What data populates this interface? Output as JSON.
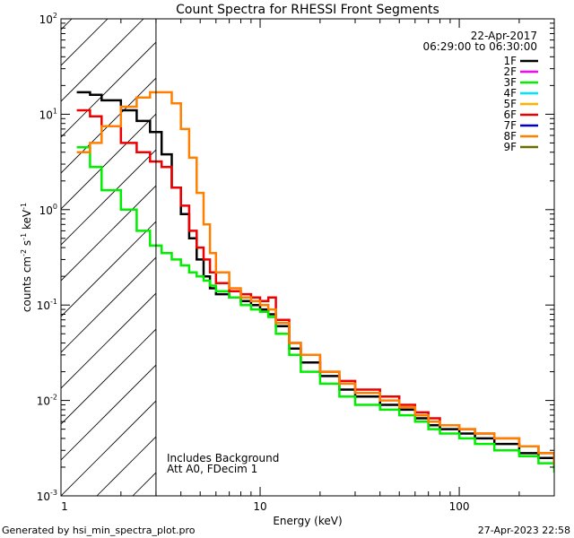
{
  "chart_data": {
    "type": "line",
    "title": "Count Spectra for RHESSI Front Segments",
    "xlabel": "Energy (keV)",
    "ylabel_parts": [
      "counts cm",
      "-2",
      " s",
      "-1",
      " keV",
      "-1"
    ],
    "x_scale": "log",
    "y_scale": "log",
    "xlim": [
      1,
      300
    ],
    "ylim": [
      0.001,
      100
    ],
    "x_ticks": [
      {
        "value": 10,
        "label": "10"
      },
      {
        "value": 100,
        "label": "100"
      }
    ],
    "y_ticks": [
      {
        "value": 0.001,
        "base": "10",
        "exp": "-3"
      },
      {
        "value": 0.01,
        "base": "10",
        "exp": "-2"
      },
      {
        "value": 0.1,
        "base": "10",
        "exp": "-1"
      },
      {
        "value": 1,
        "base": "10",
        "exp": "0"
      },
      {
        "value": 10,
        "base": "10",
        "exp": "1"
      },
      {
        "value": 100,
        "base": "10",
        "exp": "2"
      }
    ],
    "hatched_region_xmax": 3,
    "date": "22-Apr-2017",
    "time_range": "06:29:00 to 06:30:00",
    "annotations": [
      "Includes Background",
      "Att A0, FDecim 1"
    ],
    "footer_left": "Generated by hsi_min_spectra_plot.pro",
    "footer_right": "27-Apr-2023 22:58",
    "legend": [
      {
        "label": "1F",
        "color": "#000000"
      },
      {
        "label": "2F",
        "color": "#ff00ff"
      },
      {
        "label": "3F",
        "color": "#00ee00"
      },
      {
        "label": "4F",
        "color": "#00e5ff"
      },
      {
        "label": "5F",
        "color": "#ffb000"
      },
      {
        "label": "6F",
        "color": "#ee0000"
      },
      {
        "label": "7F",
        "color": "#0000cc"
      },
      {
        "label": "8F",
        "color": "#ff7f00"
      },
      {
        "label": "9F",
        "color": "#6b6b00"
      }
    ],
    "series": [
      {
        "name": "1F",
        "color": "#000000",
        "x": [
          1.2,
          1.4,
          1.6,
          2.0,
          2.4,
          2.8,
          3.2,
          3.6,
          4.0,
          4.4,
          4.8,
          5.2,
          5.6,
          6.0,
          7.0,
          8.0,
          9.0,
          10,
          11,
          12,
          14,
          16,
          20,
          25,
          30,
          40,
          50,
          60,
          70,
          80,
          100,
          120,
          150,
          200,
          250,
          300
        ],
        "y": [
          17,
          16,
          14,
          11,
          8.5,
          6.5,
          3.8,
          1.7,
          0.9,
          0.5,
          0.3,
          0.2,
          0.15,
          0.13,
          0.12,
          0.11,
          0.1,
          0.09,
          0.08,
          0.06,
          0.035,
          0.025,
          0.018,
          0.013,
          0.011,
          0.009,
          0.008,
          0.0065,
          0.0055,
          0.005,
          0.0045,
          0.004,
          0.0035,
          0.0028,
          0.0025,
          0.002
        ]
      },
      {
        "name": "3F",
        "color": "#00ee00",
        "x": [
          1.2,
          1.4,
          1.6,
          2.0,
          2.4,
          2.8,
          3.2,
          3.6,
          4.0,
          4.4,
          4.8,
          5.2,
          5.6,
          6.0,
          7.0,
          8.0,
          9.0,
          10,
          11,
          12,
          14,
          16,
          20,
          25,
          30,
          40,
          50,
          60,
          70,
          80,
          100,
          120,
          150,
          200,
          250,
          300
        ],
        "y": [
          4.5,
          2.8,
          1.6,
          1.0,
          0.6,
          0.42,
          0.35,
          0.3,
          0.26,
          0.22,
          0.2,
          0.18,
          0.16,
          0.14,
          0.12,
          0.1,
          0.09,
          0.085,
          0.075,
          0.05,
          0.03,
          0.02,
          0.015,
          0.011,
          0.009,
          0.008,
          0.007,
          0.006,
          0.005,
          0.0045,
          0.004,
          0.0035,
          0.003,
          0.0026,
          0.0022,
          0.0018
        ]
      },
      {
        "name": "6F",
        "color": "#ee0000",
        "x": [
          1.2,
          1.4,
          1.6,
          2.0,
          2.4,
          2.8,
          3.2,
          3.6,
          4.0,
          4.4,
          4.8,
          5.2,
          5.6,
          6.0,
          7.0,
          8.0,
          9.0,
          10,
          11,
          12,
          14,
          16,
          20,
          25,
          30,
          40,
          50,
          60,
          70,
          80,
          100,
          120,
          150,
          200,
          250,
          300
        ],
        "y": [
          11,
          9.5,
          7.5,
          5.0,
          4.0,
          3.2,
          2.8,
          1.7,
          1.1,
          0.6,
          0.4,
          0.3,
          0.22,
          0.17,
          0.14,
          0.13,
          0.12,
          0.11,
          0.12,
          0.07,
          0.04,
          0.03,
          0.02,
          0.016,
          0.013,
          0.011,
          0.009,
          0.0075,
          0.0065,
          0.0055,
          0.005,
          0.0045,
          0.004,
          0.0033,
          0.0028,
          0.0023
        ]
      },
      {
        "name": "8F",
        "color": "#ff7f00",
        "x": [
          1.2,
          1.4,
          1.6,
          2.0,
          2.4,
          2.8,
          3.2,
          3.6,
          4.0,
          4.4,
          4.8,
          5.2,
          5.6,
          6.0,
          7.0,
          8.0,
          9.0,
          10,
          11,
          12,
          14,
          16,
          20,
          25,
          30,
          40,
          50,
          60,
          70,
          80,
          100,
          120,
          150,
          200,
          250,
          300
        ],
        "y": [
          4.0,
          5.0,
          7.5,
          12,
          15,
          17,
          17,
          13,
          7.0,
          3.5,
          1.5,
          0.7,
          0.35,
          0.22,
          0.15,
          0.12,
          0.11,
          0.1,
          0.09,
          0.065,
          0.04,
          0.03,
          0.02,
          0.015,
          0.012,
          0.01,
          0.0085,
          0.007,
          0.006,
          0.0055,
          0.005,
          0.0045,
          0.004,
          0.0033,
          0.0028,
          0.0022
        ]
      }
    ]
  }
}
